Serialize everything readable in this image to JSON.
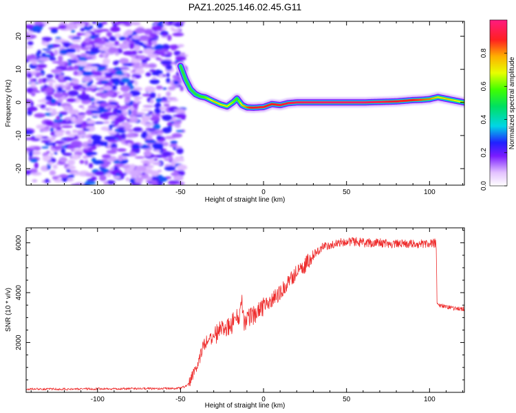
{
  "title": "PAZ1.2025.146.02.45.G11",
  "colors": {
    "snr_line": "#ee2a2a",
    "axis": "#000000"
  },
  "chart_data": [
    {
      "type": "heatmap",
      "name": "spectrogram",
      "xlabel": "Height of straight line (km)",
      "ylabel": "Frequency (Hz)",
      "xlim": [
        -143,
        121
      ],
      "ylim": [
        -25,
        24.5
      ],
      "xticks": [
        -100,
        -50,
        0,
        50,
        100
      ],
      "xtick_labels": [
        "-100",
        "-50",
        "0",
        "50",
        "100"
      ],
      "yticks": [
        -20,
        -10,
        0,
        10,
        20
      ],
      "ytick_labels": [
        "-20",
        "-10",
        "0",
        "10",
        "20"
      ],
      "noise_region_x": [
        -143,
        -50
      ],
      "ridge": {
        "x": [
          -50,
          -47,
          -44,
          -41,
          -38,
          -35,
          -30,
          -26,
          -22,
          -18,
          -16,
          -13,
          -10,
          -6,
          0,
          5,
          10,
          15,
          20,
          25,
          40,
          60,
          80,
          90,
          95,
          100,
          105,
          110,
          115,
          121
        ],
        "freq": [
          11,
          7,
          4,
          2.5,
          1.8,
          1.5,
          0.3,
          -0.6,
          -1.2,
          0.2,
          1.2,
          -0.8,
          -1.5,
          -1.6,
          -1.4,
          -0.5,
          -0.8,
          -0.2,
          0,
          0,
          0,
          0,
          0.3,
          0.7,
          0.8,
          1.0,
          1.6,
          1.1,
          0.6,
          0
        ],
        "amp": [
          0.35,
          0.4,
          0.45,
          0.5,
          0.55,
          0.6,
          0.75,
          0.7,
          0.7,
          0.6,
          0.55,
          0.75,
          0.85,
          0.9,
          0.9,
          0.88,
          0.9,
          0.92,
          0.95,
          0.96,
          0.97,
          0.97,
          0.9,
          0.88,
          0.85,
          0.82,
          0.7,
          0.75,
          0.7,
          0.65
        ]
      },
      "colorbar": {
        "label": "Normalized spectral amplitude",
        "range": [
          0,
          1
        ],
        "ticks": [
          0.0,
          0.2,
          0.4,
          0.6,
          0.8
        ],
        "tick_labels": [
          "0.0",
          "0.2",
          "0.4",
          "0.6",
          "0.8"
        ]
      }
    },
    {
      "type": "line",
      "name": "snr",
      "xlabel": "Height of straight line (km)",
      "ylabel": "SNR (10 * v/v)",
      "xlim": [
        -143,
        121
      ],
      "ylim": [
        0,
        6600
      ],
      "xticks": [
        -100,
        -50,
        0,
        50,
        100
      ],
      "xtick_labels": [
        "-100",
        "-50",
        "0",
        "50",
        "100"
      ],
      "yticks": [
        2000,
        4000,
        6000
      ],
      "ytick_labels": [
        "2000",
        "4000",
        "6000"
      ],
      "series": [
        {
          "name": "SNR",
          "x": [
            -143,
            -120,
            -100,
            -80,
            -60,
            -50,
            -47,
            -45,
            -43,
            -41,
            -39,
            -37,
            -35,
            -30,
            -25,
            -20,
            -15,
            -13,
            -12,
            -10,
            -5,
            0,
            5,
            10,
            15,
            20,
            25,
            30,
            35,
            40,
            45,
            50,
            55,
            60,
            70,
            80,
            90,
            100,
            104,
            104.5,
            110,
            121
          ],
          "y": [
            130,
            130,
            140,
            150,
            150,
            170,
            240,
            400,
            650,
            900,
            1250,
            1700,
            2000,
            2200,
            2600,
            2700,
            3000,
            3500,
            2900,
            2900,
            3200,
            3500,
            3700,
            4000,
            4400,
            4800,
            5100,
            5500,
            5800,
            5900,
            6000,
            6050,
            6050,
            6000,
            6000,
            5950,
            5950,
            5950,
            6000,
            3550,
            3400,
            3350
          ]
        }
      ]
    }
  ]
}
